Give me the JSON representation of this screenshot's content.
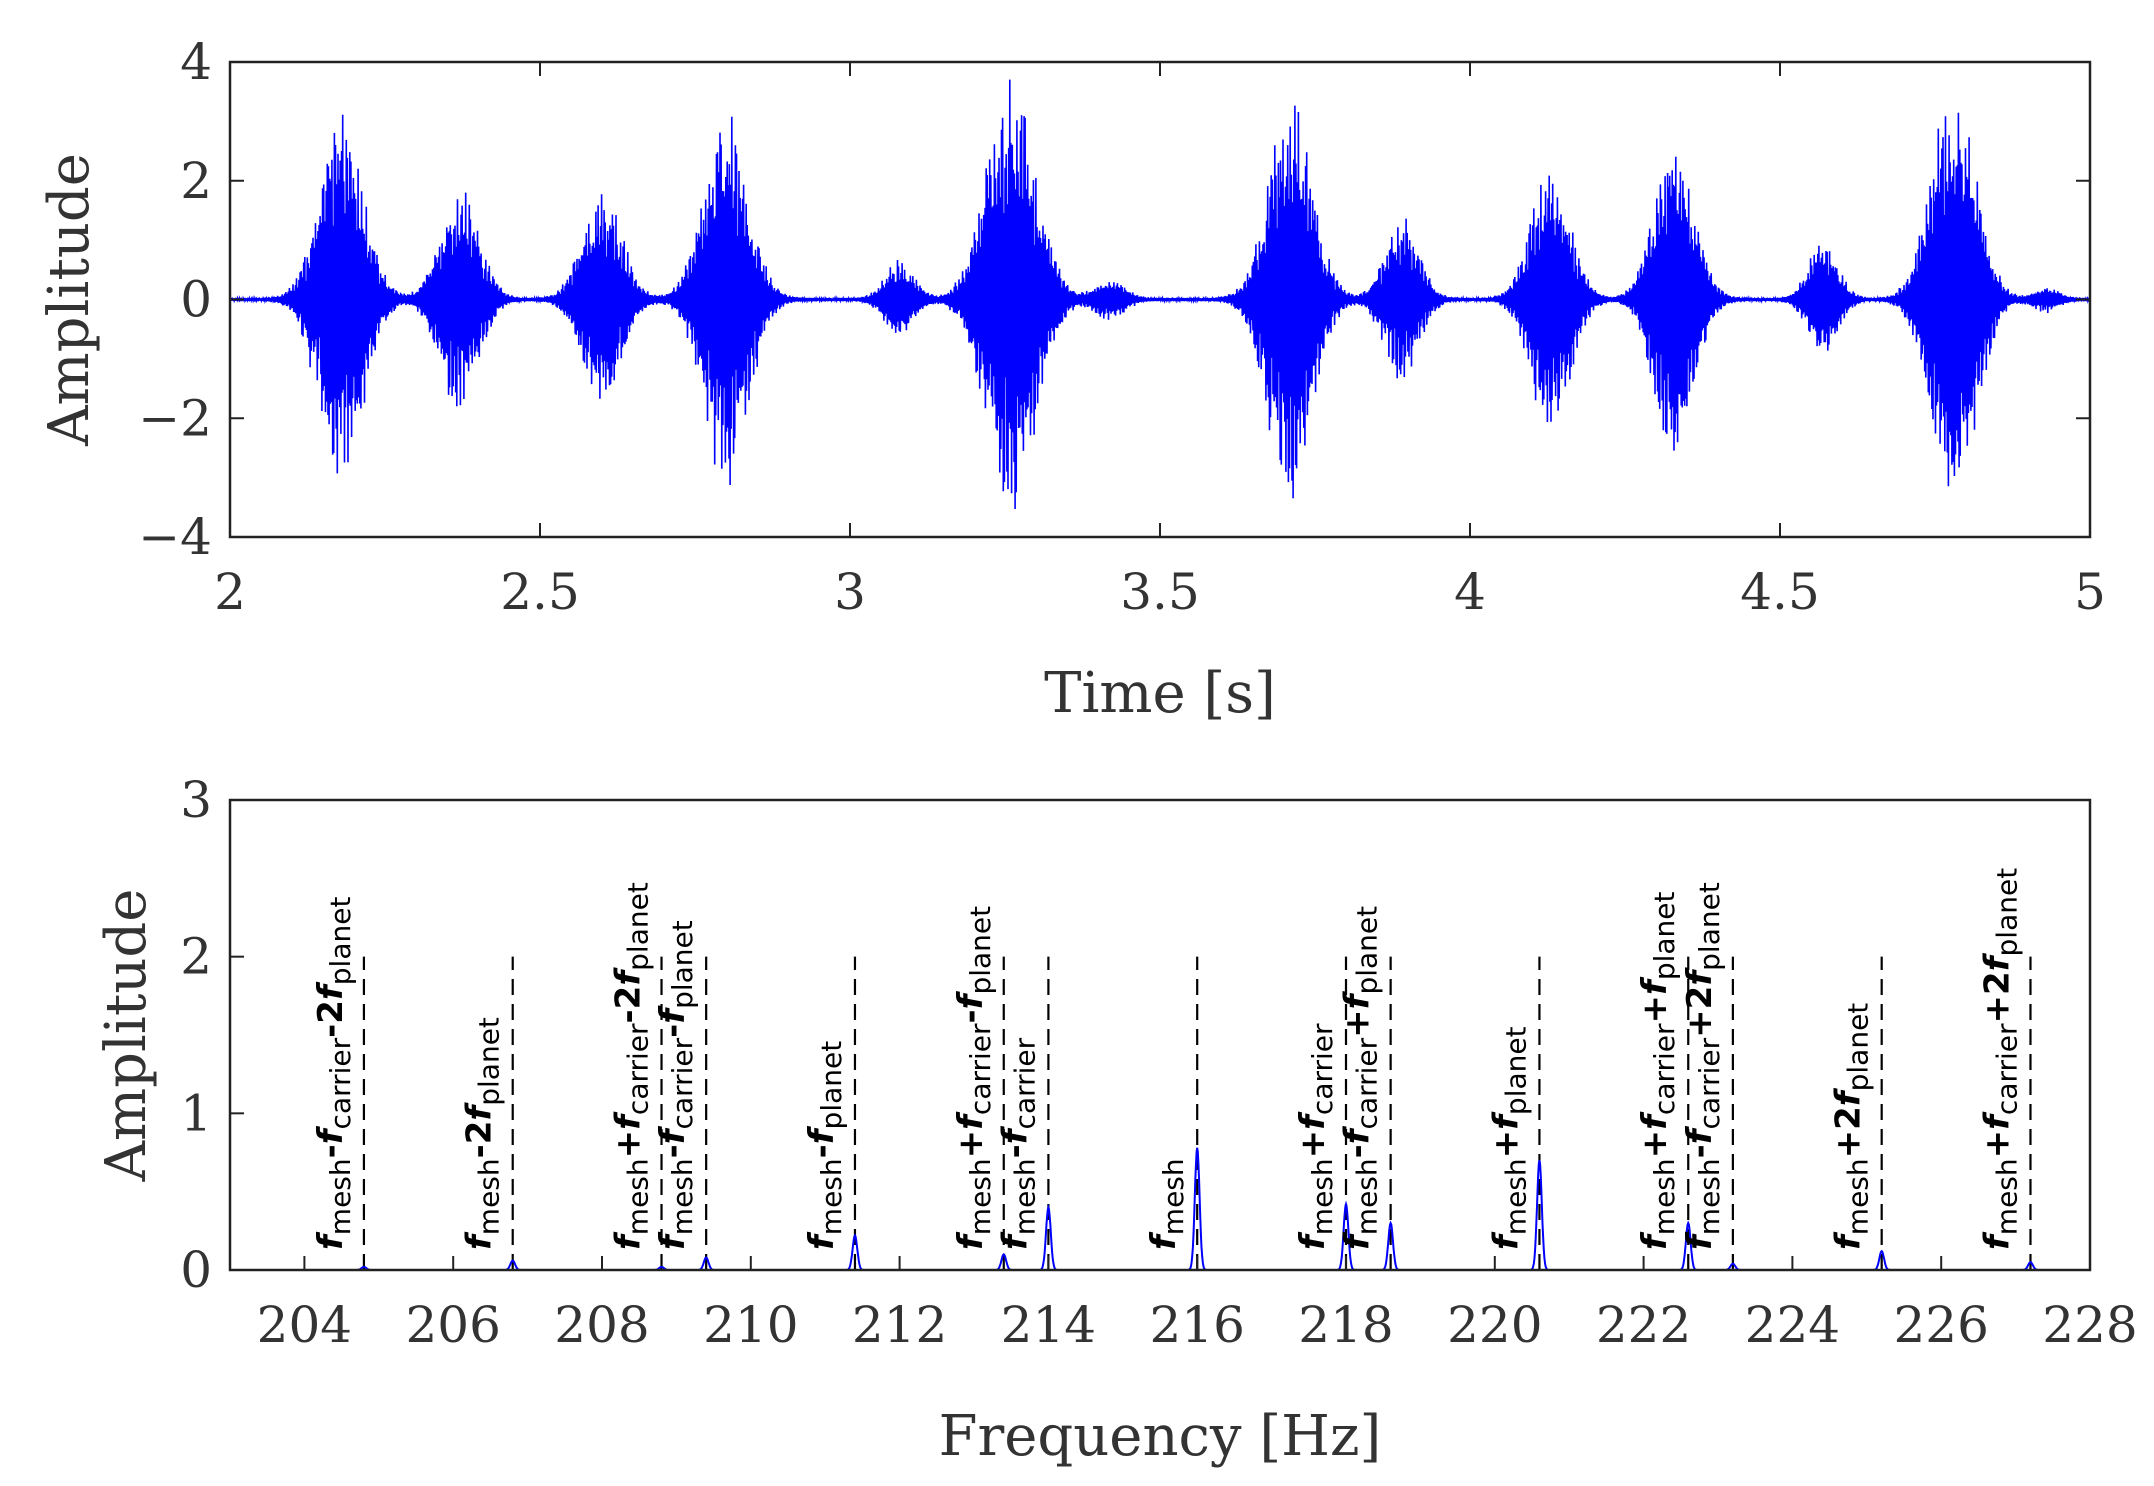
{
  "chart_data": [
    {
      "type": "line",
      "xlabel": "Time [s]",
      "ylabel": "Amplitude",
      "xlim": [
        2,
        5
      ],
      "ylim": [
        -4,
        4
      ],
      "xticks": [
        2,
        2.5,
        3,
        3.5,
        4,
        4.5,
        5
      ],
      "xtick_labels": [
        "2",
        "2.5",
        "3",
        "3.5",
        "4",
        "4.5",
        "5"
      ],
      "yticks": [
        -4,
        -2,
        0,
        2,
        4
      ],
      "ytick_labels": [
        "−4",
        "−2",
        "0",
        "2",
        "4"
      ],
      "line_color": "#0000ff",
      "grid": false,
      "bursts": [
        {
          "center": 2.18,
          "width": 0.09,
          "peak": 3.2
        },
        {
          "center": 2.37,
          "width": 0.08,
          "peak": 1.9
        },
        {
          "center": 2.6,
          "width": 0.08,
          "peak": 1.9
        },
        {
          "center": 2.8,
          "width": 0.09,
          "peak": 3.2
        },
        {
          "center": 3.08,
          "width": 0.06,
          "peak": 0.65
        },
        {
          "center": 3.26,
          "width": 0.1,
          "peak": 3.9
        },
        {
          "center": 3.42,
          "width": 0.06,
          "peak": 0.35
        },
        {
          "center": 3.71,
          "width": 0.09,
          "peak": 3.5
        },
        {
          "center": 3.89,
          "width": 0.07,
          "peak": 1.4
        },
        {
          "center": 4.13,
          "width": 0.08,
          "peak": 2.3
        },
        {
          "center": 4.33,
          "width": 0.08,
          "peak": 2.9
        },
        {
          "center": 4.57,
          "width": 0.06,
          "peak": 1.0
        },
        {
          "center": 4.78,
          "width": 0.09,
          "peak": 3.8
        },
        {
          "center": 4.93,
          "width": 0.05,
          "peak": 0.2
        }
      ]
    },
    {
      "type": "line",
      "xlabel": "Frequency [Hz]",
      "ylabel": "Amplitude",
      "xlim": [
        203,
        228
      ],
      "ylim": [
        0,
        3
      ],
      "xticks": [
        204,
        206,
        208,
        210,
        212,
        214,
        216,
        218,
        220,
        222,
        224,
        226,
        228
      ],
      "xtick_labels": [
        "204",
        "206",
        "208",
        "210",
        "212",
        "214",
        "216",
        "218",
        "220",
        "222",
        "224",
        "226",
        "228"
      ],
      "yticks": [
        0,
        1,
        2,
        3
      ],
      "ytick_labels": [
        "0",
        "1",
        "2",
        "3"
      ],
      "line_color": "#0000ff",
      "grid": false,
      "peaks": [
        {
          "x": 204.8,
          "y": 0.02
        },
        {
          "x": 206.8,
          "y": 0.06
        },
        {
          "x": 208.8,
          "y": 0.02
        },
        {
          "x": 209.4,
          "y": 0.08
        },
        {
          "x": 211.4,
          "y": 0.22
        },
        {
          "x": 213.4,
          "y": 0.1
        },
        {
          "x": 214.0,
          "y": 0.4
        },
        {
          "x": 216.0,
          "y": 0.78
        },
        {
          "x": 218.0,
          "y": 0.42
        },
        {
          "x": 218.6,
          "y": 0.3
        },
        {
          "x": 220.6,
          "y": 0.7
        },
        {
          "x": 222.6,
          "y": 0.3
        },
        {
          "x": 223.2,
          "y": 0.04
        },
        {
          "x": 225.2,
          "y": 0.12
        },
        {
          "x": 227.2,
          "y": 0.05
        }
      ],
      "annotations": [
        {
          "x": 204.8,
          "base": "f",
          "sub1": "mesh",
          "op1": "-",
          "sym2": "f",
          "sub2": "carrier",
          "op2": "-",
          "coef": "2",
          "sym3": "f",
          "sub3": "planet"
        },
        {
          "x": 206.8,
          "base": "f",
          "sub1": "mesh",
          "op1": "-",
          "coef": "2",
          "sym2": "f",
          "sub2": "planet"
        },
        {
          "x": 208.8,
          "base": "f",
          "sub1": "mesh",
          "op1": "+",
          "sym2": "f",
          "sub2": "carrier",
          "op2": "-",
          "coef": "2",
          "sym3": "f",
          "sub3": "planet"
        },
        {
          "x": 209.4,
          "base": "f",
          "sub1": "mesh",
          "op1": "-",
          "sym2": "f",
          "sub2": "carrier",
          "op2": "-",
          "sym3": "f",
          "sub3": "planet"
        },
        {
          "x": 211.4,
          "base": "f",
          "sub1": "mesh",
          "op1": "-",
          "sym2": "f",
          "sub2": "planet"
        },
        {
          "x": 213.4,
          "base": "f",
          "sub1": "mesh",
          "op1": "+",
          "sym2": "f",
          "sub2": "carrier",
          "op2": "-",
          "sym3": "f",
          "sub3": "planet"
        },
        {
          "x": 214.0,
          "base": "f",
          "sub1": "mesh",
          "op1": "-",
          "sym2": "f",
          "sub2": "carrier"
        },
        {
          "x": 216.0,
          "base": "f",
          "sub1": "mesh"
        },
        {
          "x": 218.0,
          "base": "f",
          "sub1": "mesh",
          "op1": "+",
          "sym2": "f",
          "sub2": "carrier"
        },
        {
          "x": 218.6,
          "base": "f",
          "sub1": "mesh",
          "op1": "-",
          "sym2": "f",
          "sub2": "carrier",
          "op2": "+",
          "sym3": "f",
          "sub3": "planet"
        },
        {
          "x": 220.6,
          "base": "f",
          "sub1": "mesh",
          "op1": "+",
          "sym2": "f",
          "sub2": "planet"
        },
        {
          "x": 222.6,
          "base": "f",
          "sub1": "mesh",
          "op1": "+",
          "sym2": "f",
          "sub2": "carrier",
          "op2": "+",
          "sym3": "f",
          "sub3": "planet"
        },
        {
          "x": 223.2,
          "base": "f",
          "sub1": "mesh",
          "op1": "-",
          "sym2": "f",
          "sub2": "carrier",
          "op2": "+",
          "coef": "2",
          "sym3": "f",
          "sub3": "planet"
        },
        {
          "x": 225.2,
          "base": "f",
          "sub1": "mesh",
          "op1": "+",
          "coef": "2",
          "sym2": "f",
          "sub2": "planet"
        },
        {
          "x": 227.2,
          "base": "f",
          "sub1": "mesh",
          "op1": "+",
          "sym2": "f",
          "sub2": "carrier",
          "op2": "+",
          "coef": "2",
          "sym3": "f",
          "sub3": "planet"
        }
      ]
    }
  ]
}
